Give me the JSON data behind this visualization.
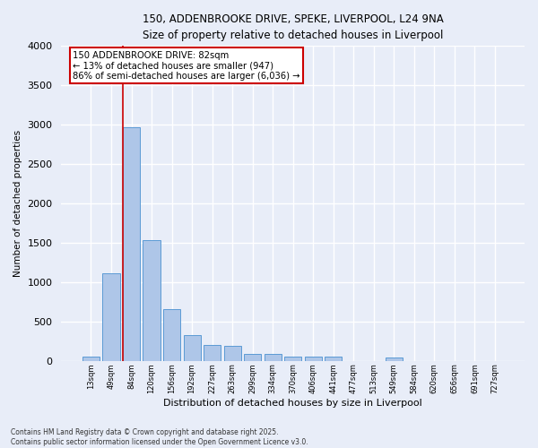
{
  "title_line1": "150, ADDENBROOKE DRIVE, SPEKE, LIVERPOOL, L24 9NA",
  "title_line2": "Size of property relative to detached houses in Liverpool",
  "xlabel": "Distribution of detached houses by size in Liverpool",
  "ylabel": "Number of detached properties",
  "footer_line1": "Contains HM Land Registry data © Crown copyright and database right 2025.",
  "footer_line2": "Contains public sector information licensed under the Open Government Licence v3.0.",
  "annotation_line1": "150 ADDENBROOKE DRIVE: 82sqm",
  "annotation_line2": "← 13% of detached houses are smaller (947)",
  "annotation_line3": "86% of semi-detached houses are larger (6,036) →",
  "bar_categories": [
    "13sqm",
    "49sqm",
    "84sqm",
    "120sqm",
    "156sqm",
    "192sqm",
    "227sqm",
    "263sqm",
    "299sqm",
    "334sqm",
    "370sqm",
    "406sqm",
    "441sqm",
    "477sqm",
    "513sqm",
    "549sqm",
    "584sqm",
    "620sqm",
    "656sqm",
    "691sqm",
    "727sqm"
  ],
  "bar_values": [
    55,
    1110,
    2970,
    1530,
    655,
    330,
    200,
    190,
    90,
    85,
    60,
    50,
    50,
    0,
    0,
    45,
    0,
    0,
    0,
    0,
    0
  ],
  "bar_color": "#aec6e8",
  "bar_edge_color": "#5b9bd5",
  "reference_line_color": "#cc0000",
  "annotation_box_edge_color": "#cc0000",
  "annotation_box_face_color": "#ffffff",
  "background_color": "#e8edf8",
  "plot_bg_color": "#e8edf8",
  "grid_color": "#ffffff",
  "ylim": [
    0,
    4000
  ],
  "yticks": [
    0,
    500,
    1000,
    1500,
    2000,
    2500,
    3000,
    3500,
    4000
  ]
}
